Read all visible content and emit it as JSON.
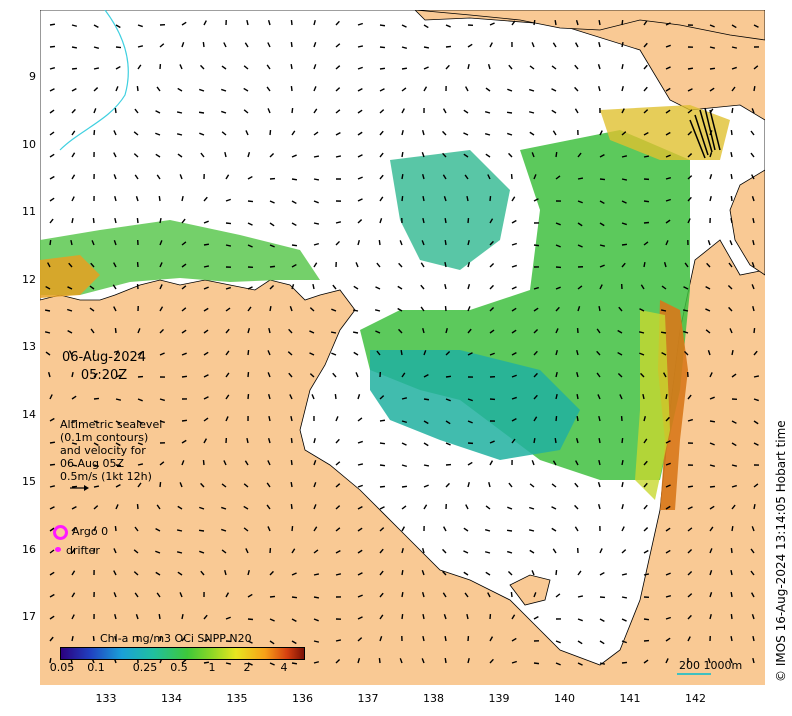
{
  "map": {
    "date": "06-Aug-2024",
    "time": "05:20Z",
    "altimetry_text": [
      "Altimetric sealevel",
      "(0.1m contours)",
      "and velocity for",
      "06 Aug 05Z",
      "0.5m/s (1kt 12h)"
    ],
    "argo_label": "Argo 0",
    "drifter_label": "drifter",
    "credit": "© IMOS 16-Aug-2024 13:14:05 Hobart time",
    "scale_label": "200  1000m",
    "y_ticks": [
      "9",
      "10",
      "11",
      "12",
      "13",
      "14",
      "15",
      "16",
      "17"
    ],
    "x_ticks": [
      "133",
      "134",
      "135",
      "136",
      "137",
      "138",
      "139",
      "140",
      "141",
      "142"
    ],
    "colorbar": {
      "title": "Chl-a mg/m3 OCi SNPP N20",
      "labels": [
        "0.05",
        "0.1",
        "0.25",
        "0.5",
        "1",
        "2",
        "4"
      ]
    },
    "colors": {
      "land": "#f9c994",
      "argo": "#ff19ff",
      "drifter": "#ff19ff"
    }
  }
}
